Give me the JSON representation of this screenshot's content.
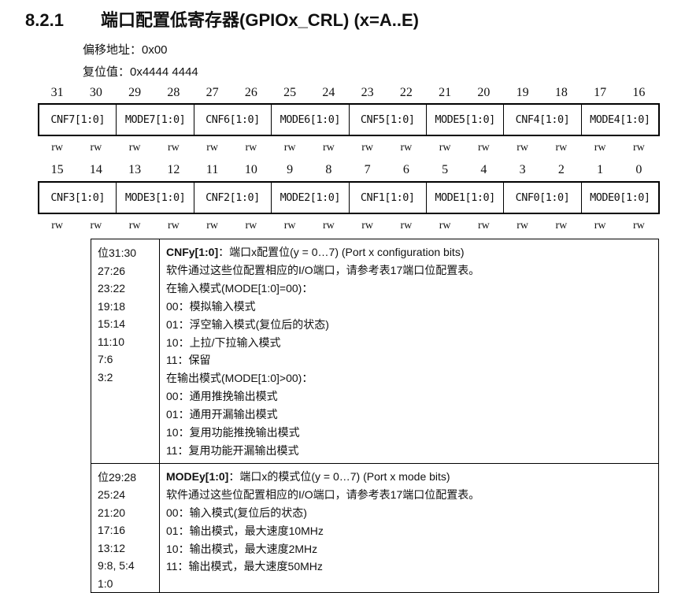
{
  "title": {
    "number": "8.2.1",
    "text": "端口配置低寄存器(GPIOx_CRL) (x=A..E)"
  },
  "offset": "偏移地址：0x00",
  "reset": "复位值：0x4444 4444",
  "row1": {
    "bits": [
      "31",
      "30",
      "29",
      "28",
      "27",
      "26",
      "25",
      "24",
      "23",
      "22",
      "21",
      "20",
      "19",
      "18",
      "17",
      "16"
    ],
    "fields": [
      "CNF7[1:0]",
      "MODE7[1:0]",
      "CNF6[1:0]",
      "MODE6[1:0]",
      "CNF5[1:0]",
      "MODE5[1:0]",
      "CNF4[1:0]",
      "MODE4[1:0]"
    ]
  },
  "row2": {
    "bits": [
      "15",
      "14",
      "13",
      "12",
      "11",
      "10",
      "9",
      "8",
      "7",
      "6",
      "5",
      "4",
      "3",
      "2",
      "1",
      "0"
    ],
    "fields": [
      "CNF3[1:0]",
      "MODE3[1:0]",
      "CNF2[1:0]",
      "MODE2[1:0]",
      "CNF1[1:0]",
      "MODE1[1:0]",
      "CNF0[1:0]",
      "MODE0[1:0]"
    ]
  },
  "access": "rw",
  "desc": [
    {
      "bits": [
        "位31:30",
        "27:26",
        "23:22",
        "19:18",
        "15:14",
        "11:10",
        "7:6",
        "3:2"
      ],
      "name": "CNFy[1:0]",
      "head": "：端口x配置位(y = 0…7) (Port x configuration bits)",
      "lines": [
        "软件通过这些位配置相应的I/O端口，请参考表17端口位配置表。",
        "在输入模式(MODE[1:0]=00)：",
        "00：模拟输入模式",
        "01：浮空输入模式(复位后的状态)",
        "10：上拉/下拉输入模式",
        "11：保留",
        "在输出模式(MODE[1:0]>00)：",
        "00：通用推挽输出模式",
        "01：通用开漏输出模式",
        "10：复用功能推挽输出模式",
        "11：复用功能开漏输出模式"
      ]
    },
    {
      "bits": [
        "位29:28",
        "25:24",
        "21:20",
        "17:16",
        "13:12",
        "9:8, 5:4",
        "1:0"
      ],
      "name": "MODEy[1:0]",
      "head": "：端口x的模式位(y = 0…7) (Port x mode bits)",
      "lines": [
        "软件通过这些位配置相应的I/O端口，请参考表17端口位配置表。",
        "00：输入模式(复位后的状态)",
        "01：输出模式，最大速度10MHz",
        "10：输出模式，最大速度2MHz",
        "11：输出模式，最大速度50MHz"
      ]
    }
  ]
}
